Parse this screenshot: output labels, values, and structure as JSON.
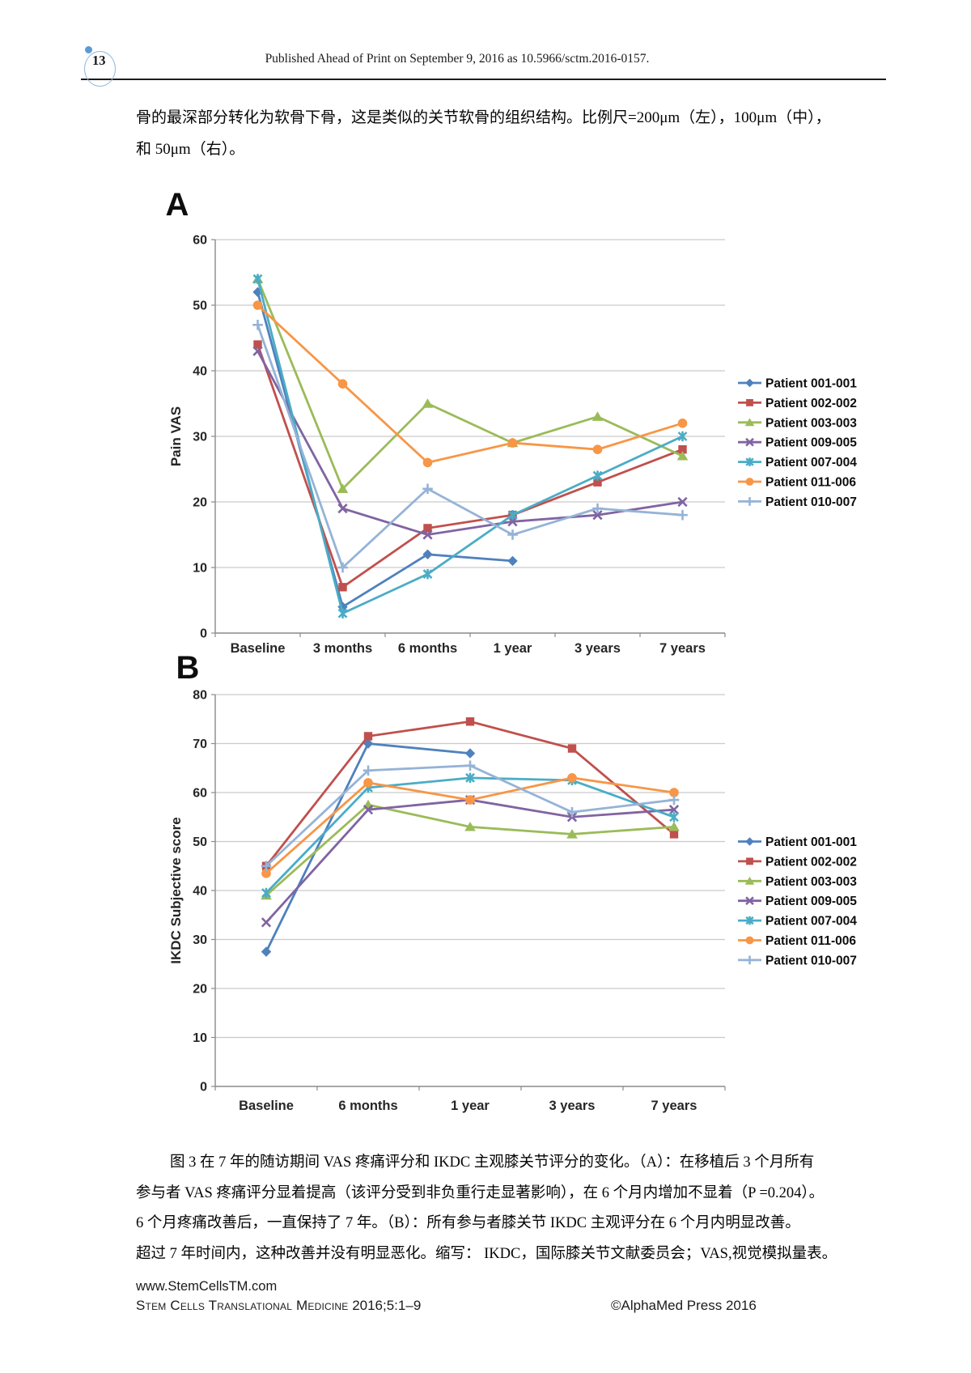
{
  "page": {
    "page_number": "13",
    "header_text": "Published Ahead of Print on September 9, 2016 as 10.5966/sctm.2016-0157.",
    "intro_lines": [
      "骨的最深部分转化为软骨下骨，这是类似的关节软骨的组织结构。比例尺=200μm（左），100μm（中），",
      "和 50μm（右）。"
    ],
    "caption_lines": [
      "图 3 在 7 年的随访期间 VAS 疼痛评分和 IKDC 主观膝关节评分的变化。（A）：在移植后 3 个月所有",
      "参与者 VAS 疼痛评分显着提高（该评分受到非负重行走显著影响），在 6 个月内增加不显着（P =0.204）。",
      "6 个月疼痛改善后，一直保持了 7 年。（B）：所有参与者膝关节 IKDC 主观评分在 6 个月内明显改善。",
      "超过 7 年时间内，这种改善并没有明显恶化。缩写： IKDC，国际膝关节文献委员会；VAS,视觉模拟量表。"
    ],
    "footer": {
      "website": "www.StemCellsTM.com",
      "journal": "Stem Cells Translational Medicine",
      "citation": "2016;5:1–9",
      "copyright": "©AlphaMed Press 2016"
    }
  },
  "chart_data": [
    {
      "type": "line",
      "panel_label": "A",
      "ylabel": "Pain VAS",
      "ylim": [
        0,
        60
      ],
      "ytick_step": 10,
      "grid": true,
      "legend_position": "right",
      "categories": [
        "Baseline",
        "3 months",
        "6 months",
        "1 year",
        "3 years",
        "7 years"
      ],
      "series": [
        {
          "name": "Patient 001-001",
          "color": "#4F81BD",
          "marker": "diamond",
          "values": [
            52,
            4,
            12,
            11,
            null,
            null
          ]
        },
        {
          "name": "Patient 002-002",
          "color": "#C0504D",
          "marker": "square",
          "values": [
            44,
            7,
            16,
            18,
            23,
            28
          ]
        },
        {
          "name": "Patient 003-003",
          "color": "#9BBB59",
          "marker": "triangle",
          "values": [
            54,
            22,
            35,
            29,
            33,
            27
          ]
        },
        {
          "name": "Patient 009-005",
          "color": "#8064A2",
          "marker": "x",
          "values": [
            43,
            19,
            15,
            17,
            18,
            20
          ]
        },
        {
          "name": "Patient 007-004",
          "color": "#4BACC6",
          "marker": "star",
          "values": [
            54,
            3,
            9,
            18,
            24,
            30
          ]
        },
        {
          "name": "Patient 011-006",
          "color": "#F79646",
          "marker": "circle",
          "values": [
            50,
            38,
            26,
            29,
            28,
            32
          ]
        },
        {
          "name": "Patient 010-007",
          "color": "#95B3D7",
          "marker": "plus",
          "values": [
            47,
            10,
            22,
            15,
            19,
            18
          ]
        }
      ]
    },
    {
      "type": "line",
      "panel_label": "B",
      "ylabel": "IKDC Subjective score",
      "ylim": [
        0,
        80
      ],
      "ytick_step": 10,
      "grid": true,
      "legend_position": "right",
      "categories": [
        "Baseline",
        "6 months",
        "1 year",
        "3 years",
        "7 years"
      ],
      "series": [
        {
          "name": "Patient 001-001",
          "color": "#4F81BD",
          "marker": "diamond",
          "values": [
            27.5,
            70,
            68,
            null,
            null
          ]
        },
        {
          "name": "Patient 002-002",
          "color": "#C0504D",
          "marker": "square",
          "values": [
            45,
            71.5,
            74.5,
            69,
            51.5
          ]
        },
        {
          "name": "Patient 003-003",
          "color": "#9BBB59",
          "marker": "triangle",
          "values": [
            39,
            57.5,
            53,
            51.5,
            53
          ]
        },
        {
          "name": "Patient 009-005",
          "color": "#8064A2",
          "marker": "x",
          "values": [
            33.5,
            56.5,
            58.5,
            55,
            56.5
          ]
        },
        {
          "name": "Patient 007-004",
          "color": "#4BACC6",
          "marker": "star",
          "values": [
            39.5,
            61,
            63,
            62.5,
            55
          ]
        },
        {
          "name": "Patient 011-006",
          "color": "#F79646",
          "marker": "circle",
          "values": [
            43.5,
            62,
            58.5,
            63,
            60
          ]
        },
        {
          "name": "Patient 010-007",
          "color": "#95B3D7",
          "marker": "plus",
          "values": [
            45,
            64.5,
            65.5,
            56,
            58.5
          ]
        }
      ]
    }
  ]
}
